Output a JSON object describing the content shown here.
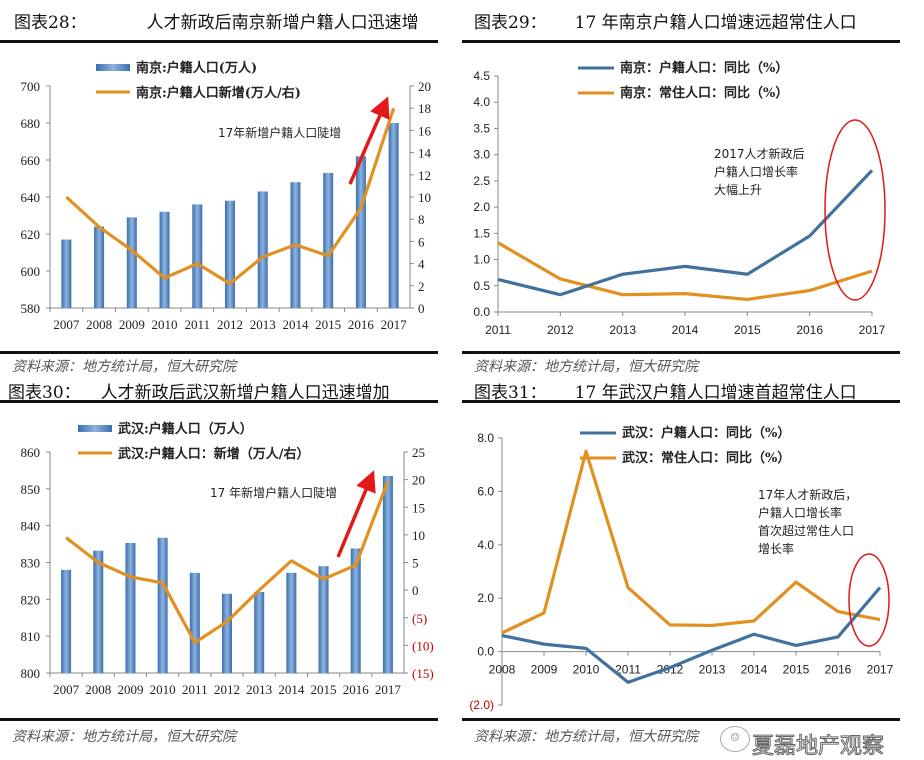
{
  "colors": {
    "bar": "#4f81bd",
    "bar_light": "#8db3e2",
    "line_orange": "#e2901f",
    "line_blue": "#41719c",
    "accent_red": "#e31818",
    "neg_label": "#c00000"
  },
  "panels": [
    {
      "label": "图表28：",
      "title": "人才新政后南京新增户籍人口迅速增",
      "source": "资料来源：地方统计局，恒大研究院"
    },
    {
      "label": "图表29：",
      "title": "17 年南京户籍人口增速远超常住人口",
      "source": "资料来源：地方统计局，恒大研究院"
    },
    {
      "label": "图表30：",
      "title": "人才新政后武汉新增户籍人口迅速增加",
      "source": "资料来源：地方统计局，恒大研究院"
    },
    {
      "label": "图表31：",
      "title": "17 年武汉户籍人口增速首超常住人口",
      "source": "资料来源：地方统计局，恒大研究院"
    }
  ],
  "watermark": "夏磊地产观察",
  "chart_data": [
    {
      "type": "bar",
      "title": "人才新政后南京新增户籍人口迅速增",
      "categories": [
        "2007",
        "2008",
        "2009",
        "2010",
        "2011",
        "2012",
        "2013",
        "2014",
        "2015",
        "2016",
        "2017"
      ],
      "series": [
        {
          "name": "南京:户籍人口(万人)",
          "kind": "bar",
          "axis": "left",
          "values": [
            617,
            624,
            629,
            632,
            636,
            638,
            643,
            648,
            653,
            662,
            680
          ]
        },
        {
          "name": "南京:户籍人口新增(万人/右)",
          "kind": "line",
          "axis": "right",
          "values": [
            10,
            7.3,
            5.2,
            2.7,
            4.0,
            2.2,
            4.6,
            5.7,
            4.7,
            9.0,
            18.0
          ]
        }
      ],
      "ylim": [
        580,
        700
      ],
      "yticks": [
        "580",
        "600",
        "620",
        "640",
        "660",
        "680",
        "700"
      ],
      "y2lim": [
        0,
        20
      ],
      "y2ticks": [
        "0",
        "2",
        "4",
        "6",
        "8",
        "10",
        "12",
        "14",
        "16",
        "18",
        "20"
      ],
      "annotation": "17年新增户籍人口陡增",
      "legend": "top-center"
    },
    {
      "type": "line",
      "title": "17 年南京户籍人口增速远超常住人口",
      "categories": [
        "2011",
        "2012",
        "2013",
        "2014",
        "2015",
        "2016",
        "2017"
      ],
      "series": [
        {
          "name": "南京：户籍人口：同比（%）",
          "values": [
            0.62,
            0.33,
            0.72,
            0.87,
            0.72,
            1.45,
            2.7
          ]
        },
        {
          "name": "南京：常住人口：同比（%）",
          "values": [
            1.32,
            0.63,
            0.33,
            0.35,
            0.24,
            0.41,
            0.78
          ]
        }
      ],
      "ylim": [
        0,
        4.5
      ],
      "yticks": [
        "0.0",
        "0.5",
        "1.0",
        "1.5",
        "2.0",
        "2.5",
        "3.0",
        "3.5",
        "4.0",
        "4.5"
      ],
      "annotation": [
        "2017人才新政后",
        "户籍人口增长率",
        "大幅上升"
      ],
      "legend": "top-center"
    },
    {
      "type": "bar",
      "title": "人才新政后武汉新增户籍人口迅速增加",
      "categories": [
        "2007",
        "2008",
        "2009",
        "2010",
        "2011",
        "2012",
        "2013",
        "2014",
        "2015",
        "2016",
        "2017"
      ],
      "series": [
        {
          "name": "武汉:户籍人口（万人）",
          "kind": "bar",
          "axis": "left",
          "values": [
            828,
            833.2,
            835.3,
            836.7,
            827.2,
            821.5,
            822,
            827.2,
            829,
            833.8,
            853.5
          ]
        },
        {
          "name": "武汉:户籍人口：新增（万人/右）",
          "kind": "line",
          "axis": "right",
          "values": [
            9.5,
            5.0,
            2.4,
            1.3,
            -9.5,
            -5.7,
            0.0,
            5.3,
            2.0,
            4.5,
            19.7
          ]
        }
      ],
      "ylim": [
        800,
        860
      ],
      "yticks": [
        "800",
        "810",
        "820",
        "830",
        "840",
        "850",
        "860"
      ],
      "y2lim": [
        -15,
        25
      ],
      "y2ticks": [
        "(15)",
        "(10)",
        "(5)",
        "0",
        "5",
        "10",
        "15",
        "20",
        "25"
      ],
      "annotation": "17 年新增户籍人口陡增",
      "legend": "top-center"
    },
    {
      "type": "line",
      "title": "17 年武汉户籍人口增速首超常住人口",
      "categories": [
        "2008",
        "2009",
        "2010",
        "2011",
        "2012",
        "2013",
        "2014",
        "2015",
        "2016",
        "2017"
      ],
      "series": [
        {
          "name": "武汉：户籍人口：同比（%）",
          "values": [
            0.6,
            0.28,
            0.12,
            -1.15,
            -0.6,
            0.05,
            0.65,
            0.23,
            0.55,
            2.4
          ]
        },
        {
          "name": "武汉：常住人口：同比（%）",
          "values": [
            0.7,
            1.45,
            7.5,
            2.4,
            1.0,
            0.98,
            1.15,
            2.6,
            1.5,
            1.2
          ]
        }
      ],
      "ylim": [
        -2,
        8
      ],
      "yticks": [
        "(2.0)",
        "0.0",
        "2.0",
        "4.0",
        "6.0",
        "8.0"
      ],
      "annotation": [
        "17年人才新政后，",
        "户籍人口增长率",
        "首次超过常住人口",
        "增长率"
      ],
      "legend": "top-center"
    }
  ]
}
